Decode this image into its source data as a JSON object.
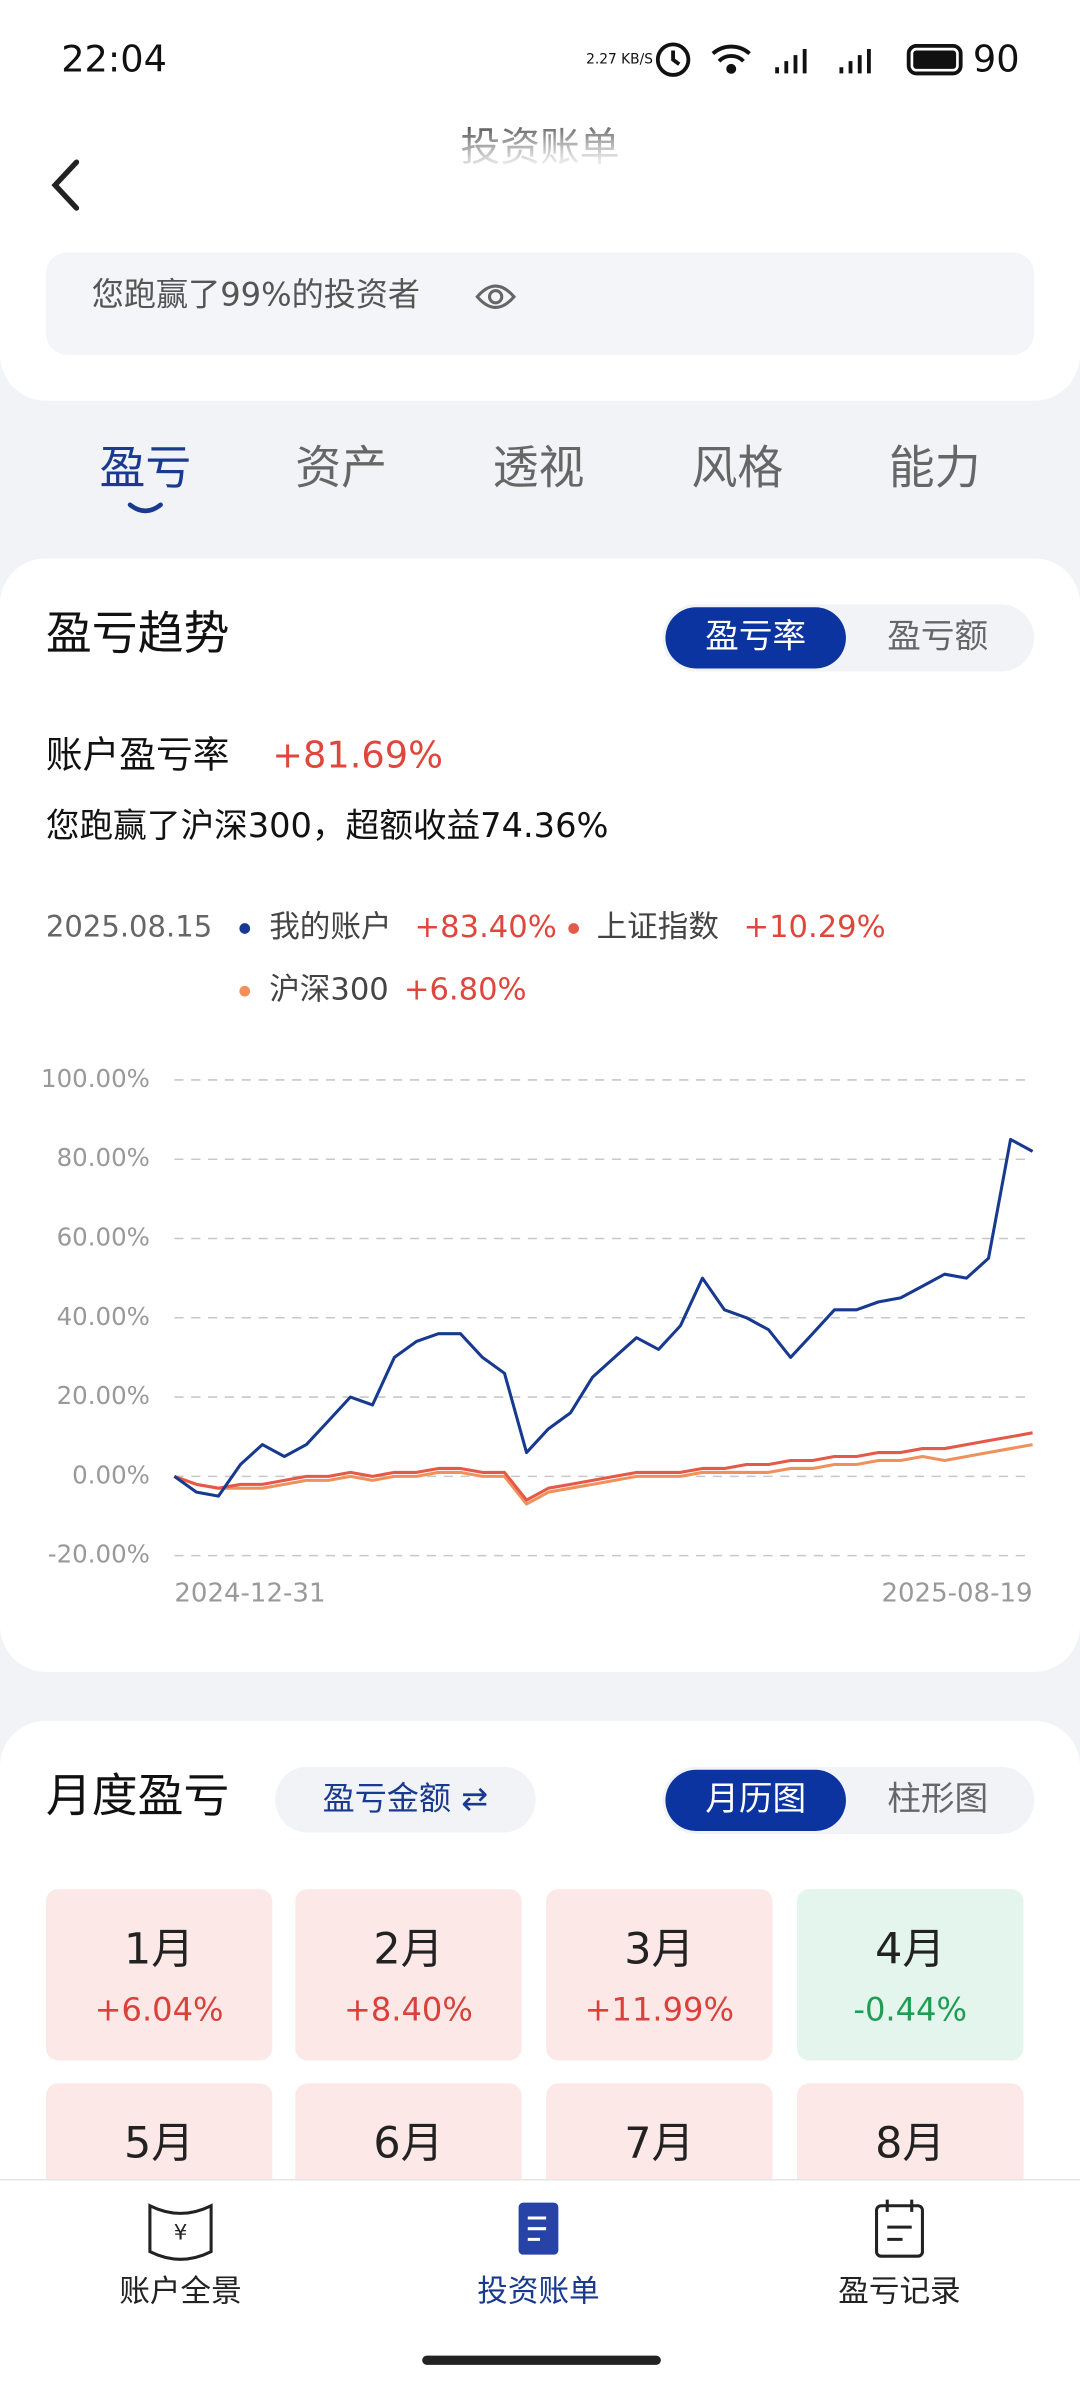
{
  "status_bar": {
    "time": "22:04",
    "net_speed": "2.27 KB/S",
    "battery": "90"
  },
  "header": {
    "title": "投资账单"
  },
  "summary": {
    "text": "您跑赢了99%的投资者"
  },
  "tabs": {
    "items": [
      "盈亏",
      "资产",
      "透视",
      "风格",
      "能力"
    ],
    "active": 0
  },
  "trend": {
    "title": "盈亏趋势",
    "toggle": [
      "盈亏率",
      "盈亏额"
    ],
    "toggle_active": 0,
    "rate_label": "账户盈亏率",
    "rate_value": "+81.69%",
    "beat_text": "您跑赢了沪深300，超额收益74.36%",
    "legend": {
      "date": "2025.08.15",
      "items": [
        {
          "name": "我的账户",
          "value": "+83.40%"
        },
        {
          "name": "上证指数",
          "value": "+10.29%"
        },
        {
          "name": "沪深300",
          "value": "+6.80%"
        }
      ]
    },
    "chart_data": {
      "type": "line",
      "categories": [
        "2024-12-31",
        null,
        null,
        null,
        null,
        null,
        null,
        null,
        null,
        null,
        null,
        null,
        null,
        null,
        null,
        null,
        null,
        null,
        null,
        null,
        null,
        null,
        null,
        null,
        null,
        null,
        null,
        null,
        null,
        null,
        null,
        null,
        null,
        null,
        null,
        null,
        null,
        null,
        null,
        "2025-08-19"
      ],
      "series": [
        {
          "name": "我的账户",
          "color": "#173a8e",
          "values": [
            0,
            -4,
            -5,
            3,
            8,
            5,
            8,
            14,
            20,
            18,
            30,
            34,
            36,
            36,
            30,
            26,
            6,
            12,
            16,
            25,
            30,
            35,
            32,
            38,
            50,
            42,
            40,
            37,
            30,
            36,
            42,
            42,
            44,
            45,
            48,
            51,
            50,
            55,
            85,
            82
          ]
        },
        {
          "name": "上证指数",
          "color": "#e45a48",
          "values": [
            0,
            -2,
            -3,
            -2,
            -2,
            -1,
            0,
            0,
            1,
            0,
            1,
            1,
            2,
            2,
            1,
            1,
            -6,
            -3,
            -2,
            -1,
            0,
            1,
            1,
            1,
            2,
            2,
            3,
            3,
            4,
            4,
            5,
            5,
            6,
            6,
            7,
            7,
            8,
            9,
            10,
            11
          ]
        },
        {
          "name": "沪深300",
          "color": "#f0915c",
          "values": [
            0,
            -2,
            -3,
            -3,
            -3,
            -2,
            -1,
            -1,
            0,
            -1,
            0,
            0,
            1,
            1,
            0,
            0,
            -7,
            -4,
            -3,
            -2,
            -1,
            0,
            0,
            0,
            1,
            1,
            1,
            1,
            2,
            2,
            3,
            3,
            4,
            4,
            5,
            4,
            5,
            6,
            7,
            8
          ]
        }
      ],
      "ylim": [
        -20,
        100
      ],
      "yticks": [
        {
          "value": 100,
          "label": "100.00%"
        },
        {
          "value": 80,
          "label": "80.00%"
        },
        {
          "value": 60,
          "label": "60.00%"
        },
        {
          "value": 40,
          "label": "40.00%"
        },
        {
          "value": 20,
          "label": "20.00%"
        },
        {
          "value": 0,
          "label": "0.00%"
        },
        {
          "value": -20,
          "label": "-20.00%"
        }
      ],
      "grid": true
    }
  },
  "monthly": {
    "title": "月度盈亏",
    "mode": "盈亏金额 ⇄",
    "toggle": [
      "月历图",
      "柱形图"
    ],
    "toggle_active": 0,
    "cells": [
      {
        "month": "1月",
        "value": "+6.04%"
      },
      {
        "month": "2月",
        "value": "+8.40%"
      },
      {
        "month": "3月",
        "value": "+11.99%"
      },
      {
        "month": "4月",
        "value": "-0.44%"
      },
      {
        "month": "5月"
      },
      {
        "month": "6月"
      },
      {
        "month": "7月"
      },
      {
        "month": "8月"
      }
    ]
  },
  "nav": {
    "items": [
      "账户全景",
      "投资账单",
      "盈亏记录"
    ],
    "active": 1
  }
}
